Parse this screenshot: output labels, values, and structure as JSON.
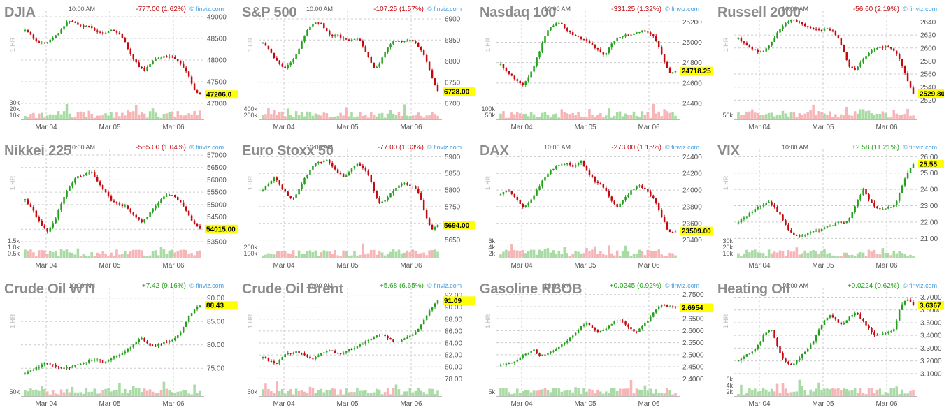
{
  "colors": {
    "up": "#23a11c",
    "down": "#c4090f",
    "up_vol": "#a9dca4",
    "down_vol": "#f6b6b8",
    "last_price_bg": "#ffff00",
    "grid": "#cccccc"
  },
  "watermark": "© finviz.com",
  "timeframe_label": "1 HR",
  "panels": [
    {
      "title": "DJIA",
      "time": "10:00 AM",
      "change": "-777.00 (1.62%)",
      "direction": "down",
      "last": "47206.0",
      "chart_data": {
        "type": "candlestick",
        "x_ticks": [
          "Mar 04",
          "Mar 05",
          "Mar 06"
        ],
        "y_ticks": [
          49000,
          48500,
          48000,
          47500,
          47000
        ],
        "ylim": [
          47000,
          49000
        ],
        "vol_ticks": [
          "30k",
          "20k",
          "10k"
        ],
        "close": [
          48700,
          48620,
          48470,
          48410,
          48390,
          48430,
          48500,
          48600,
          48720,
          48860,
          48920,
          48850,
          48800,
          48770,
          48780,
          48700,
          48650,
          48600,
          48650,
          48700,
          48620,
          48550,
          48350,
          48100,
          47950,
          47820,
          47750,
          47900,
          48000,
          48050,
          48080,
          48070,
          48060,
          48000,
          47900,
          47750,
          47500,
          47250,
          47206
        ]
      }
    },
    {
      "title": "S&P 500",
      "time": "10:00 AM",
      "change": "-107.25 (1.57%)",
      "direction": "down",
      "last": "6728.00",
      "chart_data": {
        "type": "candlestick",
        "x_ticks": [
          "Mar 04",
          "Mar 05",
          "Mar 06"
        ],
        "y_ticks": [
          6900,
          6850,
          6800,
          6750,
          6700
        ],
        "ylim": [
          6700,
          6905
        ],
        "vol_ticks": [
          "400k",
          "200k"
        ],
        "close": [
          6845,
          6830,
          6810,
          6795,
          6780,
          6795,
          6810,
          6835,
          6865,
          6885,
          6892,
          6888,
          6870,
          6858,
          6862,
          6855,
          6848,
          6850,
          6855,
          6830,
          6808,
          6782,
          6795,
          6820,
          6838,
          6850,
          6845,
          6848,
          6850,
          6840,
          6825,
          6795,
          6760,
          6728
        ]
      }
    },
    {
      "title": "Nasdaq 100",
      "time": "10:00 AM",
      "change": "-331.25 (1.32%)",
      "direction": "down",
      "last": "24718.25",
      "chart_data": {
        "type": "candlestick",
        "x_ticks": [
          "Mar 04",
          "Mar 05",
          "Mar 06"
        ],
        "y_ticks": [
          25200,
          25000,
          24800,
          24600,
          24400
        ],
        "ylim": [
          24400,
          25250
        ],
        "vol_ticks": [
          "100k",
          "50k"
        ],
        "close": [
          24780,
          24720,
          24670,
          24620,
          24580,
          24650,
          24760,
          24900,
          25050,
          25150,
          25180,
          25200,
          25120,
          25080,
          25060,
          25030,
          25010,
          24960,
          24920,
          24870,
          24960,
          25030,
          25060,
          25070,
          25080,
          25100,
          25110,
          25100,
          25060,
          24950,
          24800,
          24700,
          24718
        ]
      }
    },
    {
      "title": "Russell 2000",
      "time": "10:00 AM",
      "change": "-56.60 (2.19%)",
      "direction": "down",
      "last": "2529.80",
      "chart_data": {
        "type": "candlestick",
        "x_ticks": [
          "Mar 04",
          "Mar 05",
          "Mar 06"
        ],
        "y_ticks": [
          2640,
          2620,
          2600,
          2580,
          2560,
          2540,
          2520
        ],
        "ylim": [
          2515,
          2648
        ],
        "vol_ticks": [
          "50k"
        ],
        "close": [
          2614,
          2608,
          2600,
          2596,
          2593,
          2600,
          2612,
          2628,
          2638,
          2643,
          2641,
          2636,
          2632,
          2630,
          2627,
          2630,
          2626,
          2618,
          2595,
          2572,
          2566,
          2578,
          2590,
          2598,
          2600,
          2602,
          2600,
          2594,
          2575,
          2550,
          2530
        ]
      }
    },
    {
      "title": "Nikkei 225",
      "time": "10:00 AM",
      "change": "-565.00 (1.04%)",
      "direction": "down",
      "last": "54015.00",
      "chart_data": {
        "type": "candlestick",
        "x_ticks": [
          "Mar 04",
          "Mar 05",
          "Mar 06"
        ],
        "y_ticks": [
          57000,
          56500,
          56000,
          55500,
          55000,
          54500,
          54000,
          53500
        ],
        "ylim": [
          53500,
          57000
        ],
        "vol_ticks": [
          "1.5k",
          "1.0k",
          "0.5k"
        ],
        "close": [
          55200,
          54800,
          54300,
          53900,
          54300,
          55100,
          55700,
          56100,
          56200,
          56350,
          55900,
          55500,
          55100,
          55000,
          54900,
          54500,
          54300,
          54600,
          55000,
          55300,
          55400,
          55200,
          54800,
          54300,
          54015
        ]
      }
    },
    {
      "title": "Euro Stoxx 50",
      "time": "10:00 AM",
      "change": "-77.00 (1.33%)",
      "direction": "down",
      "last": "5694.00",
      "chart_data": {
        "type": "candlestick",
        "x_ticks": [
          "Mar 04",
          "Mar 05",
          "Mar 06"
        ],
        "y_ticks": [
          5900,
          5850,
          5800,
          5750,
          5700,
          5650
        ],
        "ylim": [
          5645,
          5905
        ],
        "vol_ticks": [
          "200k",
          "100k"
        ],
        "close": [
          5800,
          5820,
          5840,
          5810,
          5790,
          5770,
          5795,
          5830,
          5860,
          5880,
          5885,
          5890,
          5870,
          5850,
          5840,
          5860,
          5880,
          5870,
          5850,
          5800,
          5760,
          5770,
          5790,
          5810,
          5820,
          5815,
          5810,
          5780,
          5720,
          5680,
          5694
        ]
      }
    },
    {
      "title": "DAX",
      "time": "10:00 AM",
      "change": "-273.00 (1.15%)",
      "direction": "down",
      "last": "23509.00",
      "chart_data": {
        "type": "candlestick",
        "x_ticks": [
          "Mar 04",
          "Mar 05",
          "Mar 06"
        ],
        "y_ticks": [
          24400,
          24200,
          24000,
          23800,
          23600,
          23400
        ],
        "ylim": [
          23380,
          24420
        ],
        "vol_ticks": [
          "6k",
          "4k",
          "2k"
        ],
        "close": [
          23950,
          24000,
          23900,
          23800,
          23850,
          24000,
          24150,
          24250,
          24300,
          24320,
          24280,
          24350,
          24200,
          24100,
          24050,
          23900,
          23800,
          23900,
          24000,
          24050,
          24000,
          23900,
          23700,
          23500,
          23509
        ]
      }
    },
    {
      "title": "VIX",
      "time": "10:00 AM",
      "change": "+2.58 (11.21%)",
      "direction": "up",
      "last": "25.55",
      "chart_data": {
        "type": "candlestick",
        "x_ticks": [
          "Mar 04",
          "Mar 05",
          "Mar 06"
        ],
        "y_ticks": [
          26.0,
          25.0,
          24.0,
          23.0,
          22.0,
          21.0
        ],
        "ylim": [
          20.8,
          26.1
        ],
        "vol_ticks": [
          "30k",
          "20k",
          "10k"
        ],
        "close": [
          22.0,
          22.3,
          22.6,
          22.9,
          23.1,
          23.2,
          22.8,
          22.2,
          21.5,
          21.2,
          21.1,
          21.3,
          21.4,
          21.5,
          21.7,
          21.8,
          22.0,
          21.9,
          22.4,
          23.3,
          24.0,
          23.3,
          22.9,
          22.8,
          22.9,
          23.0,
          24.0,
          25.0,
          25.55
        ]
      }
    },
    {
      "title": "Crude Oil WTI",
      "time": "10:00 AM",
      "change": "+7.42 (9.16%)",
      "direction": "up",
      "last": "88.43",
      "chart_data": {
        "type": "candlestick",
        "x_ticks": [
          "Mar 04",
          "Mar 05",
          "Mar 06"
        ],
        "y_ticks": [
          90.0,
          85.0,
          80.0,
          75.0
        ],
        "ylim": [
          72.5,
          91.0
        ],
        "vol_ticks": [
          "50k"
        ],
        "close": [
          74.0,
          74.6,
          75.2,
          76.2,
          75.9,
          75.4,
          74.9,
          75.2,
          75.7,
          76.3,
          76.6,
          76.8,
          76.3,
          76.8,
          77.6,
          78.2,
          79.2,
          80.6,
          81.5,
          80.0,
          79.8,
          80.3,
          80.8,
          81.2,
          82.5,
          85.5,
          87.5,
          88.43
        ]
      }
    },
    {
      "title": "Crude Oil Brent",
      "time": "10:00 AM",
      "change": "+5.68 (6.65%)",
      "direction": "up",
      "last": "91.09",
      "chart_data": {
        "type": "candlestick",
        "x_ticks": [
          "Mar 04",
          "Mar 05",
          "Mar 06"
        ],
        "y_ticks": [
          92.0,
          90.0,
          88.0,
          86.0,
          84.0,
          82.0,
          80.0,
          78.0
        ],
        "ylim": [
          77.8,
          92.3
        ],
        "vol_ticks": [
          "50k"
        ],
        "close": [
          81.8,
          80.9,
          80.4,
          82.0,
          82.3,
          82.6,
          81.8,
          81.3,
          82.1,
          82.7,
          82.6,
          82.0,
          82.7,
          83.2,
          83.8,
          84.4,
          85.0,
          85.6,
          84.6,
          84.1,
          84.5,
          85.2,
          86.0,
          87.8,
          89.8,
          91.09
        ]
      }
    },
    {
      "title": "Gasoline RBOB",
      "time": "10:00 AM",
      "change": "+0.0245 (0.92%)",
      "direction": "up",
      "last": "2.6954",
      "chart_data": {
        "type": "candlestick",
        "x_ticks": [
          "Mar 04",
          "Mar 05",
          "Mar 06"
        ],
        "y_ticks": [
          2.75,
          2.7,
          2.65,
          2.6,
          2.55,
          2.5,
          2.45,
          2.4
        ],
        "ylim": [
          2.395,
          2.755
        ],
        "vol_ticks": [
          "5k"
        ],
        "close": [
          2.455,
          2.463,
          2.472,
          2.49,
          2.505,
          2.523,
          2.495,
          2.505,
          2.515,
          2.535,
          2.555,
          2.575,
          2.605,
          2.632,
          2.615,
          2.592,
          2.605,
          2.625,
          2.645,
          2.635,
          2.605,
          2.595,
          2.625,
          2.65,
          2.69,
          2.71,
          2.7,
          2.6954
        ]
      }
    },
    {
      "title": "Heating Oil",
      "time": "10:00 AM",
      "change": "+0.0224 (0.62%)",
      "direction": "up",
      "last": "3.6367",
      "chart_data": {
        "type": "candlestick",
        "x_ticks": [
          "Mar 04",
          "Mar 05",
          "Mar 06"
        ],
        "y_ticks": [
          3.7,
          3.6,
          3.5,
          3.4,
          3.3,
          3.2,
          3.1
        ],
        "ylim": [
          3.05,
          3.73
        ],
        "vol_ticks": [
          "6k",
          "4k",
          "2k"
        ],
        "close": [
          3.2,
          3.24,
          3.27,
          3.32,
          3.41,
          3.46,
          3.32,
          3.2,
          3.16,
          3.2,
          3.26,
          3.31,
          3.4,
          3.5,
          3.56,
          3.52,
          3.48,
          3.54,
          3.58,
          3.53,
          3.46,
          3.4,
          3.41,
          3.42,
          3.45,
          3.62,
          3.69,
          3.6367
        ]
      }
    }
  ]
}
